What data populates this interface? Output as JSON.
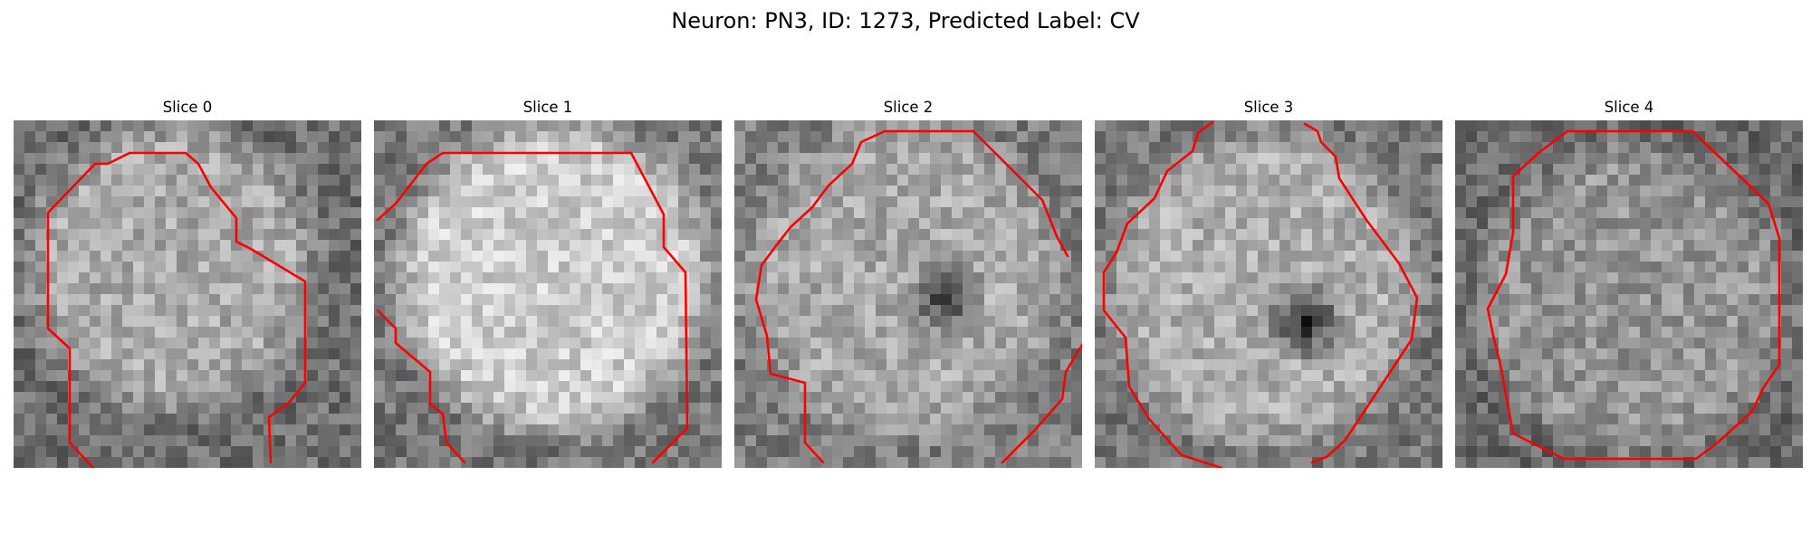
{
  "figure": {
    "title": "Neuron: PN3, ID: 1273, Predicted Label: CV"
  },
  "slices": [
    {
      "title": "Slice 0"
    },
    {
      "title": "Slice 1"
    },
    {
      "title": "Slice 2"
    },
    {
      "title": "Slice 3"
    },
    {
      "title": "Slice 4"
    }
  ],
  "colors": {
    "contour": "#ff0000",
    "background": "#ffffff",
    "colormap": "gray"
  }
}
